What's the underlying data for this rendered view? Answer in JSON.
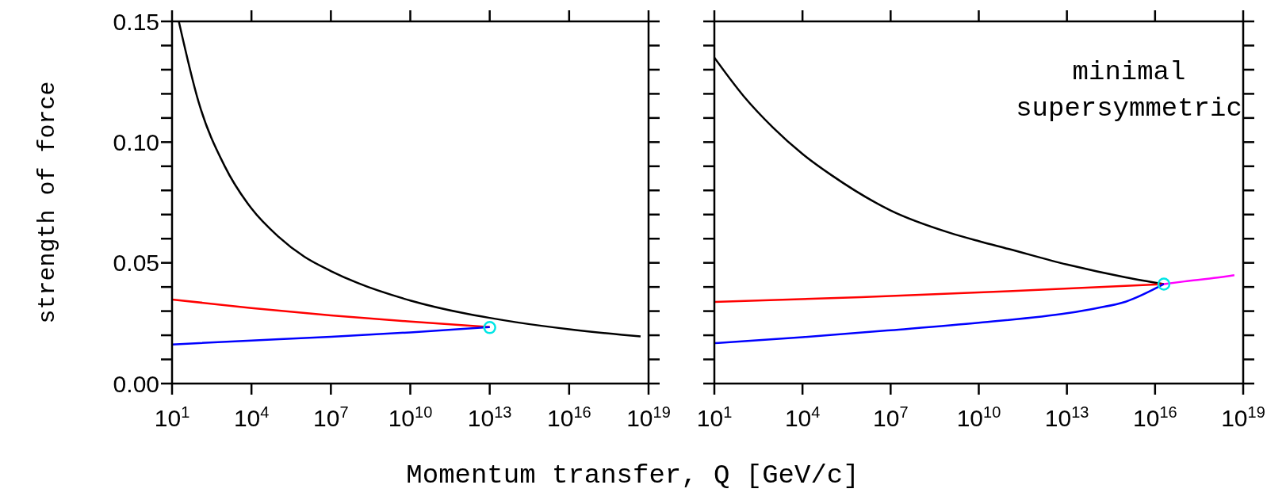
{
  "chart_data": [
    {
      "type": "line",
      "ylabel": "strength of force",
      "xlabel": "Momentum transfer, Q [GeV/c]",
      "log": "x",
      "grid": false,
      "marker": "none",
      "line_style": "solid",
      "xlim": [
        10,
        1e+19
      ],
      "xticks": [
        {
          "value": 10,
          "label": "10$^{1}$"
        },
        {
          "value": 10000,
          "label": "10$^{4}$"
        },
        {
          "value": 10000000.0,
          "label": "10$^{7}$"
        },
        {
          "value": 10000000000.0,
          "label": "10$^{10}$"
        },
        {
          "value": 10000000000000.0,
          "label": "10$^{13}$"
        },
        {
          "value": 1e+16,
          "label": "10$^{16}$"
        },
        {
          "value": 1e+19,
          "label": "10$^{19}$"
        }
      ],
      "ylim": [
        0,
        0.15
      ],
      "yticks": [
        {
          "value": 0,
          "label": "0.00"
        },
        {
          "value": 0.01,
          "label": null
        },
        {
          "value": 0.02,
          "label": null
        },
        {
          "value": 0.03,
          "label": null
        },
        {
          "value": 0.04,
          "label": null
        },
        {
          "value": 0.05,
          "label": "0.05"
        },
        {
          "value": 0.06,
          "label": null
        },
        {
          "value": 0.07,
          "label": null
        },
        {
          "value": 0.08,
          "label": null
        },
        {
          "value": 0.09,
          "label": null
        },
        {
          "value": 0.1,
          "label": "0.10"
        },
        {
          "value": 0.11,
          "label": null
        },
        {
          "value": 0.12,
          "label": null
        },
        {
          "value": 0.13,
          "label": null
        },
        {
          "value": 0.14,
          "label": null
        },
        {
          "value": 0.15,
          "label": "0.15"
        }
      ],
      "series": [
        {
          "color": "#000000",
          "x": [
            18,
            100,
            1000,
            10000,
            100000,
            1000000,
            10000000.0,
            100000000.0,
            10000000000.0,
            1000000000000.0,
            10000000000000.0,
            100000000000000.0,
            1e+16,
            1e+18,
            5e+18
          ],
          "values": [
            0.15,
            0.1167,
            0.0898,
            0.0725,
            0.061,
            0.0525,
            0.0466,
            0.0417,
            0.0344,
            0.0292,
            0.0272,
            0.0254,
            0.0225,
            0.0202,
            0.0195
          ]
        },
        {
          "color": "#ff0000",
          "x": [
            10,
            10000,
            10000000.0,
            10000000000.0,
            10000000000000.0
          ],
          "values": [
            0.0348,
            0.0313,
            0.0282,
            0.0257,
            0.0234
          ]
        },
        {
          "color": "#0000ff",
          "x": [
            10,
            10000,
            10000000.0,
            10000000000.0,
            10000000000000.0
          ],
          "values": [
            0.0162,
            0.0178,
            0.0194,
            0.0212,
            0.0234
          ]
        },
        {
          "type": "scatter",
          "marker": "circle",
          "color": "#00e5e5",
          "x": [
            10000000000000.0
          ],
          "values": [
            0.0232
          ]
        }
      ]
    },
    {
      "type": "line",
      "annotations": [
        "minimal supersymmetric"
      ],
      "log": "x",
      "grid": false,
      "marker": "none",
      "line_style": "solid",
      "tick_labels": "x",
      "xlim": [
        10,
        1e+19
      ],
      "xticks": [
        {
          "value": 10,
          "label": "10$^{1}$"
        },
        {
          "value": 10000,
          "label": "10$^{4}$"
        },
        {
          "value": 10000000.0,
          "label": "10$^{7}$"
        },
        {
          "value": 10000000000.0,
          "label": "10$^{10}$"
        },
        {
          "value": 10000000000000.0,
          "label": "10$^{13}$"
        },
        {
          "value": 1e+16,
          "label": "10$^{16}$"
        },
        {
          "value": 1e+19,
          "label": "10$^{19}$"
        }
      ],
      "ylim": [
        0,
        0.15
      ],
      "yticks": [
        {
          "value": 0,
          "label": null
        },
        {
          "value": 0.01,
          "label": null
        },
        {
          "value": 0.02,
          "label": null
        },
        {
          "value": 0.03,
          "label": null
        },
        {
          "value": 0.04,
          "label": null
        },
        {
          "value": 0.05,
          "label": null
        },
        {
          "value": 0.06,
          "label": null
        },
        {
          "value": 0.07,
          "label": null
        },
        {
          "value": 0.08,
          "label": null
        },
        {
          "value": 0.09,
          "label": null
        },
        {
          "value": 0.1,
          "label": null
        },
        {
          "value": 0.11,
          "label": null
        },
        {
          "value": 0.12,
          "label": null
        },
        {
          "value": 0.13,
          "label": null
        },
        {
          "value": 0.14,
          "label": null
        },
        {
          "value": 0.15,
          "label": null
        }
      ],
      "series": [
        {
          "color": "#000000",
          "x": [
            10,
            100,
            1000,
            10000,
            100000,
            10000000.0,
            1000000000.0,
            10000000000.0,
            100000000000.0,
            10000000000000.0,
            1000000000000000.0,
            2e+16
          ],
          "values": [
            0.135,
            0.119,
            0.106,
            0.0951,
            0.0862,
            0.0717,
            0.0625,
            0.059,
            0.0558,
            0.0493,
            0.044,
            0.0412
          ]
        },
        {
          "color": "#ff0000",
          "x": [
            10,
            1000000,
            100000000000.0,
            2e+16
          ],
          "values": [
            0.0338,
            0.0358,
            0.0382,
            0.0412
          ]
        },
        {
          "color": "#0000ff",
          "x": [
            10,
            10000,
            10000000.0,
            10000000000.0,
            10000000000000.0,
            100000000000000.0,
            1000000000000000.0,
            2e+16
          ],
          "values": [
            0.0167,
            0.0192,
            0.0221,
            0.0252,
            0.0291,
            0.0312,
            0.0339,
            0.0412
          ]
        },
        {
          "color": "#ff00ff",
          "x": [
            2e+16,
            1e+17,
            1e+18,
            5e+18
          ],
          "values": [
            0.0412,
            0.0423,
            0.0437,
            0.0449
          ]
        },
        {
          "type": "scatter",
          "marker": "circle",
          "color": "#00e5e5",
          "x": [
            2e+16
          ],
          "values": [
            0.0412
          ]
        }
      ]
    }
  ]
}
